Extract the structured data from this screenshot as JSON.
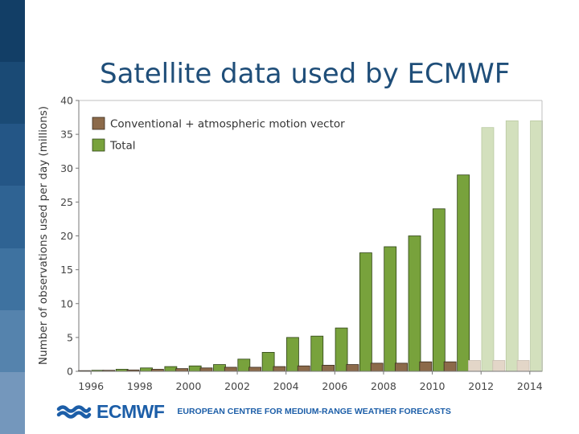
{
  "slide": {
    "title": "Satellite data used by ECMWF",
    "footer": {
      "logo_text": "ECMWF",
      "tagline": "EUROPEAN CENTRE FOR MEDIUM-RANGE WEATHER FORECASTS"
    },
    "stripe_colors": [
      "#123e66",
      "#1a4a75",
      "#245686",
      "#2f6393",
      "#3e72a0",
      "#5583ad",
      "#7497bc"
    ]
  },
  "chart_data": {
    "type": "bar",
    "title": "",
    "ylabel": "Number of observations used per day (millions)",
    "xlabel": "",
    "ylim": [
      0,
      40
    ],
    "yticks": [
      0,
      5,
      10,
      15,
      20,
      25,
      30,
      35,
      40
    ],
    "categories": [
      "1996",
      "1997",
      "1998",
      "1999",
      "2000",
      "2001",
      "2002",
      "2003",
      "2004",
      "2005",
      "2006",
      "2007",
      "2008",
      "2009",
      "2010",
      "2011",
      "2012",
      "2013",
      "2014"
    ],
    "xtick_labels": [
      "1996",
      "1998",
      "2000",
      "2002",
      "2004",
      "2006",
      "2008",
      "2010",
      "2012",
      "2014"
    ],
    "legend": {
      "position": "top-left",
      "entries": [
        "Conventional + atmospheric motion vector",
        "Total"
      ]
    },
    "series": [
      {
        "name": "Conventional + atmospheric motion vector",
        "color": "#8c6a4a",
        "projected_color": "#e3d6c8",
        "values": [
          0.1,
          0.15,
          0.2,
          0.3,
          0.4,
          0.5,
          0.6,
          0.6,
          0.7,
          0.8,
          0.9,
          1.0,
          1.2,
          1.2,
          1.4,
          1.4,
          1.6,
          1.6,
          1.6
        ]
      },
      {
        "name": "Total",
        "color": "#78a23c",
        "projected_color": "#d3e0bd",
        "values": [
          0.15,
          0.3,
          0.5,
          0.7,
          0.8,
          1.0,
          1.8,
          2.8,
          5.0,
          5.2,
          6.4,
          17.5,
          18.4,
          20.0,
          24.0,
          29.0,
          36.0,
          37.0,
          37.0
        ]
      }
    ],
    "projected_from": "2012"
  }
}
